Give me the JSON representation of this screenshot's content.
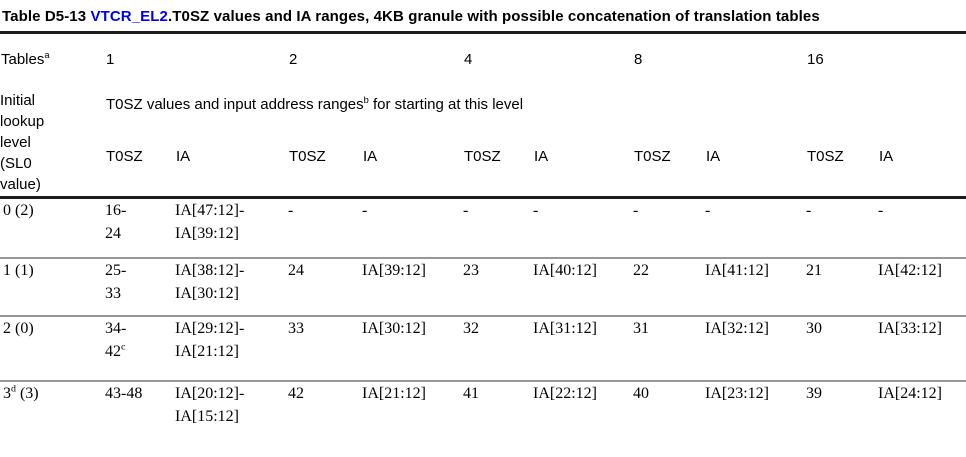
{
  "title": {
    "prefix": "Table D5-13 ",
    "link": "VTCR_EL2",
    "suffix": ".T0SZ values and IA ranges, 4KB granule with possible concatenation of translation tables"
  },
  "header": {
    "tables_label": "Tables",
    "tables_sup": "a",
    "table_counts": [
      "1",
      "2",
      "4",
      "8",
      "16"
    ],
    "row_label": "Initial\nlookup\nlevel\n(SL0\nvalue)",
    "span_pre": "T0SZ values and input address ranges",
    "span_sup": "b",
    "span_post": " for starting at this level",
    "t0sz_label": "T0SZ",
    "ia_label": "IA"
  },
  "rows": [
    {
      "level": {
        "pre": "0 (2)",
        "sup": "",
        "post": ""
      },
      "cells": [
        {
          "text": "16-\n24",
          "sup": ""
        },
        {
          "text": "IA[47:12]-\nIA[39:12]",
          "sup": ""
        },
        {
          "text": "-",
          "sup": ""
        },
        {
          "text": "-",
          "sup": ""
        },
        {
          "text": "-",
          "sup": ""
        },
        {
          "text": "-",
          "sup": ""
        },
        {
          "text": "-",
          "sup": ""
        },
        {
          "text": "-",
          "sup": ""
        },
        {
          "text": "-",
          "sup": ""
        },
        {
          "text": "-",
          "sup": ""
        }
      ]
    },
    {
      "level": {
        "pre": "1 (1)",
        "sup": "",
        "post": ""
      },
      "cells": [
        {
          "text": "25-\n33",
          "sup": ""
        },
        {
          "text": "IA[38:12]-\nIA[30:12]",
          "sup": ""
        },
        {
          "text": "24",
          "sup": ""
        },
        {
          "text": "IA[39:12]",
          "sup": ""
        },
        {
          "text": "23",
          "sup": ""
        },
        {
          "text": "IA[40:12]",
          "sup": ""
        },
        {
          "text": "22",
          "sup": ""
        },
        {
          "text": "IA[41:12]",
          "sup": ""
        },
        {
          "text": "21",
          "sup": ""
        },
        {
          "text": "IA[42:12]",
          "sup": ""
        }
      ]
    },
    {
      "level": {
        "pre": "2 (0)",
        "sup": "",
        "post": ""
      },
      "cells": [
        {
          "text": "34-\n42",
          "sup": "c"
        },
        {
          "text": "IA[29:12]-\nIA[21:12]",
          "sup": ""
        },
        {
          "text": "33",
          "sup": ""
        },
        {
          "text": "IA[30:12]",
          "sup": ""
        },
        {
          "text": "32",
          "sup": ""
        },
        {
          "text": "IA[31:12]",
          "sup": ""
        },
        {
          "text": "31",
          "sup": ""
        },
        {
          "text": "IA[32:12]",
          "sup": ""
        },
        {
          "text": "30",
          "sup": ""
        },
        {
          "text": "IA[33:12]",
          "sup": ""
        }
      ]
    },
    {
      "level": {
        "pre": "3",
        "sup": "d",
        "post": " (3)"
      },
      "cells": [
        {
          "text": "43-48",
          "sup": ""
        },
        {
          "text": "IA[20:12]-\nIA[15:12]",
          "sup": ""
        },
        {
          "text": "42",
          "sup": ""
        },
        {
          "text": "IA[21:12]",
          "sup": ""
        },
        {
          "text": "41",
          "sup": ""
        },
        {
          "text": "IA[22:12]",
          "sup": ""
        },
        {
          "text": "40",
          "sup": ""
        },
        {
          "text": "IA[23:12]",
          "sup": ""
        },
        {
          "text": "39",
          "sup": ""
        },
        {
          "text": "IA[24:12]",
          "sup": ""
        }
      ]
    }
  ],
  "colors": {
    "link_blue": "#0000ee",
    "heavy_rule": "#1c1c1c",
    "light_rule": "#979797",
    "text": "#000000",
    "background": "#ffffff"
  }
}
